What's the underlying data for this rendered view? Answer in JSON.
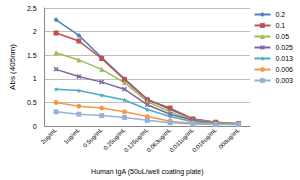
{
  "chart_data": {
    "type": "line",
    "x_label": "Human IgA (50uL/well coating plate)",
    "y_label": "Abs (405nm)",
    "categories": [
      "2ug/mL",
      "1ug/mL",
      "0.5ug/mL",
      "0.25ug/mL",
      "0.125ug/mL",
      "0.063ug/mL",
      "0.031ug/mL",
      "0.016ug/mL",
      ".008ug/mL"
    ],
    "series": [
      {
        "name": "0.2",
        "color": "#4f81bd",
        "marker": "diamond",
        "values": [
          2.25,
          1.92,
          1.45,
          1.0,
          0.57,
          0.35,
          0.15,
          0.08,
          0.05
        ]
      },
      {
        "name": "0.1",
        "color": "#c0504d",
        "marker": "square",
        "values": [
          1.97,
          1.8,
          1.43,
          0.98,
          0.55,
          0.38,
          0.15,
          0.08,
          0.05
        ]
      },
      {
        "name": "0.05",
        "color": "#9bbb59",
        "marker": "triangle",
        "values": [
          1.55,
          1.4,
          1.2,
          0.92,
          0.52,
          0.3,
          0.13,
          0.07,
          0.05
        ]
      },
      {
        "name": "0.025",
        "color": "#8064a2",
        "marker": "x",
        "values": [
          1.2,
          1.05,
          0.93,
          0.78,
          0.45,
          0.25,
          0.12,
          0.06,
          0.04
        ]
      },
      {
        "name": "0.013",
        "color": "#4bacc6",
        "marker": "star",
        "values": [
          0.78,
          0.75,
          0.65,
          0.55,
          0.35,
          0.2,
          0.09,
          0.05,
          0.04
        ]
      },
      {
        "name": "0.006",
        "color": "#f79646",
        "marker": "circle",
        "values": [
          0.5,
          0.42,
          0.38,
          0.3,
          0.2,
          0.1,
          0.06,
          0.04,
          0.03
        ]
      },
      {
        "name": "0.003",
        "color": "#95b3d7",
        "marker": "dash",
        "values": [
          0.3,
          0.25,
          0.22,
          0.18,
          0.12,
          0.07,
          0.04,
          0.03,
          0.03
        ]
      }
    ],
    "ylim": [
      0,
      2.5
    ],
    "yticks": [
      0,
      0.5,
      1,
      1.5,
      2,
      2.5
    ],
    "grid": true,
    "legend": "right"
  }
}
